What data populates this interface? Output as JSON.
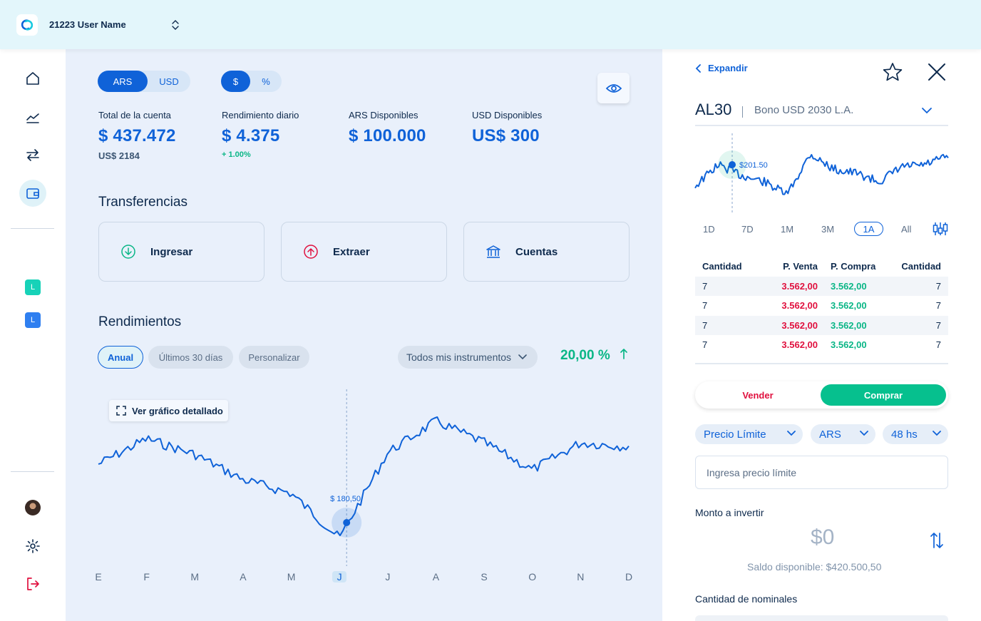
{
  "header": {
    "user_name": "21223 User Name"
  },
  "sidebar": {
    "icons": [
      "home-icon",
      "chart-line-icon",
      "transfer-arrows-icon",
      "wallet-icon"
    ],
    "badges": [
      {
        "label": "L",
        "color": "#17d2b8"
      },
      {
        "label": "L",
        "color": "#2f7ff0"
      }
    ]
  },
  "main": {
    "currency_toggle": {
      "options": [
        "ARS",
        "USD"
      ],
      "selected": "ARS"
    },
    "unit_toggle": {
      "options": [
        "$",
        "%"
      ],
      "selected": "$"
    },
    "stats": [
      {
        "label": "Total de la cuenta",
        "value": "$ 437.472",
        "sub": "US$ 2184"
      },
      {
        "label": "Rendimiento diario",
        "value": "$ 4.375",
        "sub": "+ 1.00%"
      },
      {
        "label": "ARS Disponibles",
        "value": "$ 100.000"
      },
      {
        "label": "USD Disponibles",
        "value": "US$ 300"
      }
    ],
    "transfers_title": "Transferencias",
    "transfer_cards": [
      {
        "label": "Ingresar",
        "icon": "arrow-down-circle-icon",
        "color": "#0ab686"
      },
      {
        "label": "Extraer",
        "icon": "arrow-up-circle-icon",
        "color": "#e0103e"
      },
      {
        "label": "Cuentas",
        "icon": "bank-icon",
        "color": "#0f62d8"
      }
    ],
    "performance_title": "Rendimientos",
    "period_chips": [
      "Anual",
      "Últimos 30 días",
      "Personalizar"
    ],
    "selected_period": "Anual",
    "instrument_select": "Todos mis instrumentos",
    "performance_value": "20,00 %",
    "detail_button": "Ver gráfico detallado",
    "chart_data": {
      "type": "line",
      "x": [
        "E",
        "F",
        "M",
        "A",
        "M",
        "J",
        "J",
        "A",
        "S",
        "O",
        "N",
        "D"
      ],
      "highlighted_x": "J",
      "tooltip": "$ 180,50",
      "series": [
        {
          "values": [
            165,
            178,
            170,
            157,
            150,
            127,
            171,
            187,
            176,
            162,
            176,
            174
          ]
        }
      ]
    }
  },
  "panel": {
    "expand_label": "Expandir",
    "ticker": "AL30",
    "description": "Bono USD 2030 L.A.",
    "mini_chart": {
      "type": "line",
      "tooltip": "$201.50",
      "series": [
        {
          "values": [
            190,
            200,
            195,
            192,
            186,
            205,
            198,
            196,
            192,
            199,
            200,
            204
          ]
        }
      ]
    },
    "ranges": [
      "1D",
      "7D",
      "1M",
      "3M",
      "1A",
      "All"
    ],
    "selected_range": "1A",
    "order_book": {
      "headers": [
        "Cantidad",
        "P. Venta",
        "P. Compra",
        "Cantidad"
      ],
      "rows": [
        [
          "7",
          "3.562,00",
          "3.562,00",
          "7"
        ],
        [
          "7",
          "3.562,00",
          "3.562,00",
          "7"
        ],
        [
          "7",
          "3.562,00",
          "3.562,00",
          "7"
        ],
        [
          "7",
          "3.562,00",
          "3.562,00",
          "7"
        ]
      ]
    },
    "sell_label": "Vender",
    "buy_label": "Comprar",
    "order_type": "Precio Límite",
    "currency": "ARS",
    "settlement": "48 hs",
    "limit_placeholder": "Ingresa precio límite",
    "amount_label": "Monto a invertir",
    "amount_value": "$0",
    "balance_text": "Saldo disponible:  $420.500,50",
    "nominal_label": "Cantidad de nominales"
  }
}
